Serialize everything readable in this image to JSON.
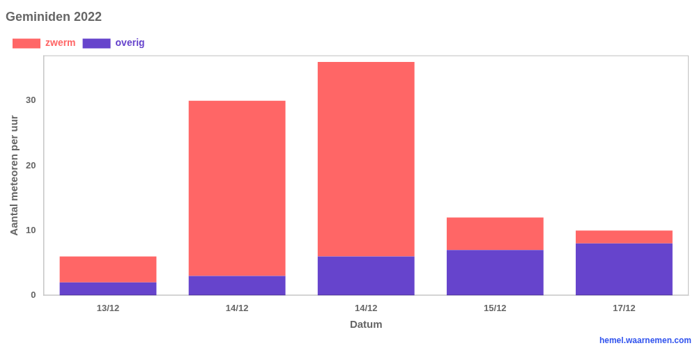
{
  "chart_data": {
    "type": "bar",
    "title": "Geminiden 2022",
    "x_label": "Datum",
    "y_label": "Aantal meteoren per uur",
    "categories": [
      "13/12",
      "14/12",
      "14/12",
      "15/12",
      "17/12"
    ],
    "series": [
      {
        "name": "overig",
        "color": "#6644CC",
        "values": [
          2,
          3,
          6,
          7,
          8
        ]
      },
      {
        "name": "zwerm",
        "color": "#FF6666",
        "values": [
          4,
          27,
          30,
          5,
          2
        ]
      }
    ],
    "stacked": true,
    "ylim": [
      0,
      37
    ],
    "yticks": [
      0,
      10,
      20,
      30
    ],
    "grid": false,
    "legend": "upper left",
    "annotations": [
      {
        "text": "hemel.waarnemen.com",
        "color": "#3355EE"
      }
    ]
  }
}
